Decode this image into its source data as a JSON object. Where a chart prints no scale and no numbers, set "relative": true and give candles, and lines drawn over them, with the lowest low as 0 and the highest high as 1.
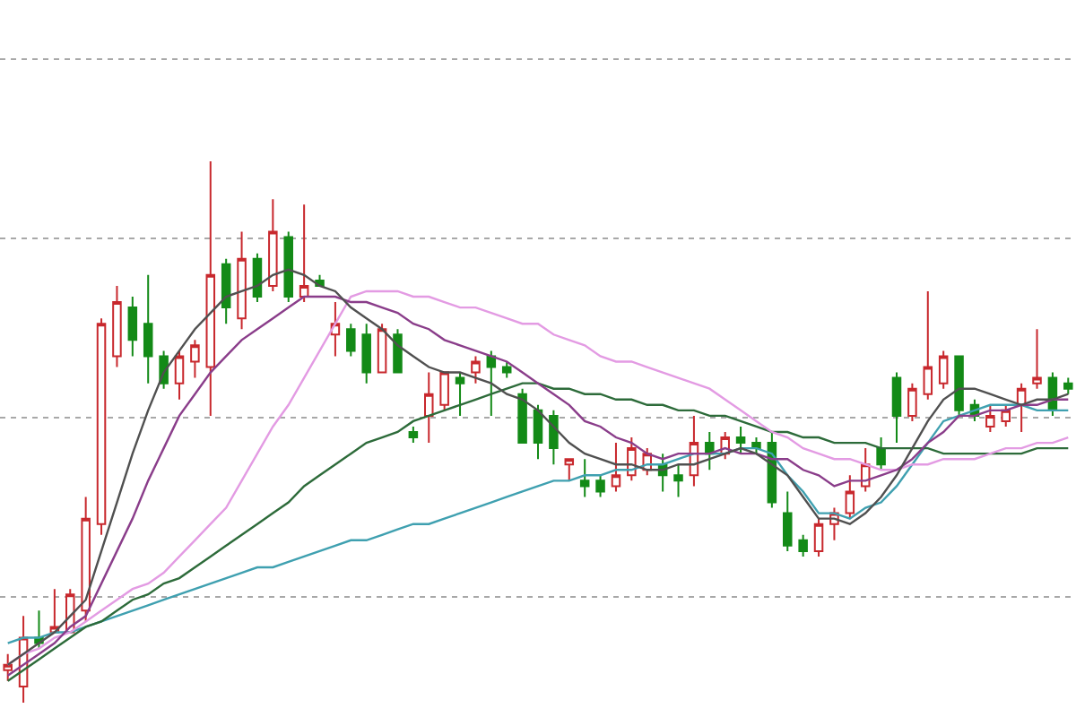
{
  "chart_data": {
    "type": "candlestick",
    "relative": true,
    "grid": "y",
    "categories": [
      null,
      null,
      null,
      null,
      null,
      null,
      null,
      null,
      null,
      null,
      null,
      null,
      null,
      null,
      null,
      null,
      null,
      null,
      null,
      null,
      null,
      null,
      null,
      null,
      null,
      null,
      null,
      null,
      null,
      null,
      null,
      null,
      null,
      null,
      null,
      null,
      null,
      null,
      null,
      null,
      null,
      null,
      null,
      null,
      null,
      null,
      null,
      null,
      null,
      null,
      null,
      null,
      null,
      null,
      null,
      null,
      null,
      null,
      null,
      null,
      null,
      null,
      null,
      null,
      null,
      null,
      null,
      null,
      null
    ],
    "ohlc": [
      [
        0.06,
        0.09,
        0.04,
        0.07
      ],
      [
        0.03,
        0.16,
        0,
        0.12
      ],
      [
        0.12,
        0.17,
        0.1,
        0.11
      ],
      [
        0.13,
        0.21,
        0.13,
        0.14
      ],
      [
        0.13,
        0.21,
        0.13,
        0.2
      ],
      [
        0.17,
        0.38,
        0.15,
        0.34
      ],
      [
        0.33,
        0.71,
        0.31,
        0.7
      ],
      [
        0.64,
        0.77,
        0.62,
        0.74
      ],
      [
        0.73,
        0.75,
        0.64,
        0.67
      ],
      [
        0.7,
        0.79,
        0.59,
        0.64
      ],
      [
        0.64,
        0.65,
        0.58,
        0.59
      ],
      [
        0.59,
        0.65,
        0.56,
        0.64
      ],
      [
        0.63,
        0.67,
        0.6,
        0.66
      ],
      [
        0.62,
        1.0,
        0.53,
        0.79
      ],
      [
        0.81,
        0.82,
        0.7,
        0.73
      ],
      [
        0.71,
        0.87,
        0.69,
        0.82
      ],
      [
        0.82,
        0.83,
        0.74,
        0.75
      ],
      [
        0.77,
        0.93,
        0.76,
        0.87
      ],
      [
        0.86,
        0.87,
        0.74,
        0.75
      ],
      [
        0.75,
        0.92,
        0.74,
        0.77
      ],
      [
        0.78,
        0.79,
        0.77,
        0.77
      ],
      [
        0.68,
        0.74,
        0.64,
        0.7
      ],
      [
        0.69,
        0.7,
        0.64,
        0.65
      ],
      [
        0.68,
        0.7,
        0.59,
        0.61
      ],
      [
        0.61,
        0.7,
        0.61,
        0.69
      ],
      [
        0.68,
        0.69,
        0.61,
        0.61
      ],
      [
        0.5,
        0.51,
        0.48,
        0.49
      ],
      [
        0.53,
        0.61,
        0.48,
        0.57
      ],
      [
        0.55,
        0.61,
        0.54,
        0.61
      ],
      [
        0.6,
        0.61,
        0.53,
        0.59
      ],
      [
        0.61,
        0.64,
        0.59,
        0.63
      ],
      [
        0.64,
        0.65,
        0.53,
        0.62
      ],
      [
        0.62,
        0.63,
        0.6,
        0.61
      ],
      [
        0.57,
        0.58,
        0.48,
        0.48
      ],
      [
        0.54,
        0.55,
        0.45,
        0.48
      ],
      [
        0.53,
        0.54,
        0.44,
        0.47
      ],
      [
        0.44,
        0.45,
        0.41,
        0.45
      ],
      [
        0.41,
        0.45,
        0.38,
        0.4
      ],
      [
        0.41,
        0.42,
        0.38,
        0.39
      ],
      [
        0.4,
        0.48,
        0.39,
        0.42
      ],
      [
        0.42,
        0.49,
        0.41,
        0.47
      ],
      [
        0.43,
        0.47,
        0.42,
        0.46
      ],
      [
        0.44,
        0.46,
        0.39,
        0.42
      ],
      [
        0.42,
        0.44,
        0.38,
        0.41
      ],
      [
        0.42,
        0.53,
        0.4,
        0.48
      ],
      [
        0.48,
        0.5,
        0.43,
        0.46
      ],
      [
        0.46,
        0.5,
        0.45,
        0.49
      ],
      [
        0.49,
        0.51,
        0.46,
        0.48
      ],
      [
        0.48,
        0.49,
        0.46,
        0.47
      ],
      [
        0.48,
        0.5,
        0.36,
        0.37
      ],
      [
        0.35,
        0.39,
        0.28,
        0.29
      ],
      [
        0.3,
        0.31,
        0.27,
        0.28
      ],
      [
        0.28,
        0.34,
        0.27,
        0.33
      ],
      [
        0.33,
        0.36,
        0.3,
        0.35
      ],
      [
        0.35,
        0.42,
        0.34,
        0.39
      ],
      [
        0.4,
        0.47,
        0.39,
        0.44
      ],
      [
        0.47,
        0.49,
        0.43,
        0.44
      ],
      [
        0.6,
        0.61,
        0.48,
        0.53
      ],
      [
        0.53,
        0.59,
        0.52,
        0.58
      ],
      [
        0.57,
        0.76,
        0.56,
        0.62
      ],
      [
        0.59,
        0.65,
        0.58,
        0.64
      ],
      [
        0.64,
        0.64,
        0.53,
        0.54
      ],
      [
        0.55,
        0.56,
        0.52,
        0.53
      ],
      [
        0.51,
        0.55,
        0.5,
        0.53
      ],
      [
        0.52,
        0.55,
        0.51,
        0.54
      ],
      [
        0.55,
        0.59,
        0.5,
        0.58
      ],
      [
        0.59,
        0.69,
        0.58,
        0.6
      ],
      [
        0.6,
        0.61,
        0.53,
        0.54
      ],
      [
        0.59,
        0.6,
        0.57,
        0.58
      ]
    ],
    "colors": [
      "#c8282d",
      "#c8282d",
      "#138a17",
      "#c8282d",
      "#c8282d",
      "#c8282d",
      "#c8282d",
      "#c8282d",
      "#138a17",
      "#138a17",
      "#138a17",
      "#c8282d",
      "#c8282d",
      "#c8282d",
      "#138a17",
      "#c8282d",
      "#138a17",
      "#c8282d",
      "#138a17",
      "#c8282d",
      "#138a17",
      "#c8282d",
      "#138a17",
      "#138a17",
      "#c8282d",
      "#138a17",
      "#138a17",
      "#c8282d",
      "#c8282d",
      "#138a17",
      "#c8282d",
      "#138a17",
      "#138a17",
      "#138a17",
      "#138a17",
      "#138a17",
      "#c8282d",
      "#138a17",
      "#138a17",
      "#c8282d",
      "#c8282d",
      "#c8282d",
      "#138a17",
      "#138a17",
      "#c8282d",
      "#138a17",
      "#c8282d",
      "#138a17",
      "#138a17",
      "#138a17",
      "#138a17",
      "#138a17",
      "#c8282d",
      "#c8282d",
      "#c8282d",
      "#c8282d",
      "#138a17",
      "#138a17",
      "#c8282d",
      "#c8282d",
      "#c8282d",
      "#138a17",
      "#138a17",
      "#c8282d",
      "#c8282d",
      "#c8282d",
      "#c8282d",
      "#138a17",
      "#138a17"
    ],
    "series": [
      {
        "type": "line",
        "color": "#3fa0b0",
        "values": [
          0.11,
          0.12,
          0.12,
          0.13,
          0.13,
          0.14,
          0.15,
          0.16,
          0.17,
          0.18,
          0.19,
          0.2,
          0.21,
          0.22,
          0.23,
          0.24,
          0.25,
          0.25,
          0.26,
          0.27,
          0.28,
          0.29,
          0.3,
          0.3,
          0.31,
          0.32,
          0.33,
          0.33,
          0.34,
          0.35,
          0.36,
          0.37,
          0.38,
          0.39,
          0.4,
          0.41,
          0.41,
          0.42,
          0.42,
          0.43,
          0.43,
          0.44,
          0.44,
          0.45,
          0.46,
          0.46,
          0.46,
          0.47,
          0.47,
          0.46,
          0.42,
          0.39,
          0.35,
          0.35,
          0.34,
          0.36,
          0.37,
          0.4,
          0.44,
          0.48,
          0.52,
          0.53,
          0.54,
          0.55,
          0.55,
          0.55,
          0.54,
          0.54,
          0.54
        ]
      },
      {
        "type": "line",
        "color": "#2d6b3a",
        "values": [
          0.04,
          0.06,
          0.08,
          0.1,
          0.12,
          0.14,
          0.15,
          0.17,
          0.19,
          0.2,
          0.22,
          0.23,
          0.25,
          0.27,
          0.29,
          0.31,
          0.33,
          0.35,
          0.37,
          0.4,
          0.42,
          0.44,
          0.46,
          0.48,
          0.49,
          0.5,
          0.52,
          0.53,
          0.54,
          0.55,
          0.56,
          0.57,
          0.58,
          0.59,
          0.59,
          0.58,
          0.58,
          0.57,
          0.57,
          0.56,
          0.56,
          0.55,
          0.55,
          0.54,
          0.54,
          0.53,
          0.53,
          0.52,
          0.51,
          0.5,
          0.5,
          0.49,
          0.49,
          0.48,
          0.48,
          0.48,
          0.47,
          0.47,
          0.47,
          0.47,
          0.46,
          0.46,
          0.46,
          0.46,
          0.46,
          0.46,
          0.47,
          0.47,
          0.47
        ]
      },
      {
        "type": "line",
        "color": "#e39be3",
        "values": [
          0.07,
          0.09,
          0.1,
          0.12,
          0.13,
          0.15,
          0.17,
          0.19,
          0.21,
          0.22,
          0.24,
          0.27,
          0.3,
          0.33,
          0.36,
          0.41,
          0.46,
          0.51,
          0.55,
          0.6,
          0.65,
          0.7,
          0.75,
          0.76,
          0.76,
          0.76,
          0.75,
          0.75,
          0.74,
          0.73,
          0.73,
          0.72,
          0.71,
          0.7,
          0.7,
          0.68,
          0.67,
          0.66,
          0.64,
          0.63,
          0.63,
          0.62,
          0.61,
          0.6,
          0.59,
          0.58,
          0.56,
          0.54,
          0.52,
          0.5,
          0.49,
          0.47,
          0.46,
          0.45,
          0.45,
          0.44,
          0.43,
          0.43,
          0.44,
          0.44,
          0.45,
          0.45,
          0.45,
          0.46,
          0.47,
          0.47,
          0.48,
          0.48,
          0.49
        ]
      },
      {
        "type": "line",
        "color": "#8a3d8a",
        "values": [
          0.05,
          0.07,
          0.09,
          0.11,
          0.14,
          0.16,
          0.22,
          0.28,
          0.34,
          0.41,
          0.47,
          0.53,
          0.57,
          0.61,
          0.64,
          0.67,
          0.69,
          0.71,
          0.73,
          0.75,
          0.75,
          0.75,
          0.74,
          0.74,
          0.73,
          0.72,
          0.7,
          0.69,
          0.67,
          0.66,
          0.65,
          0.64,
          0.63,
          0.61,
          0.59,
          0.57,
          0.55,
          0.52,
          0.51,
          0.49,
          0.48,
          0.46,
          0.45,
          0.46,
          0.46,
          0.46,
          0.47,
          0.46,
          0.46,
          0.45,
          0.45,
          0.43,
          0.42,
          0.4,
          0.41,
          0.41,
          0.42,
          0.43,
          0.45,
          0.48,
          0.5,
          0.53,
          0.53,
          0.54,
          0.54,
          0.55,
          0.55,
          0.56,
          0.56
        ]
      },
      {
        "type": "line",
        "color": "#505050",
        "values": [
          0.07,
          0.09,
          0.11,
          0.13,
          0.16,
          0.19,
          0.28,
          0.37,
          0.46,
          0.54,
          0.61,
          0.65,
          0.69,
          0.72,
          0.75,
          0.76,
          0.77,
          0.79,
          0.8,
          0.79,
          0.77,
          0.76,
          0.73,
          0.71,
          0.69,
          0.66,
          0.64,
          0.62,
          0.61,
          0.61,
          0.6,
          0.59,
          0.57,
          0.56,
          0.54,
          0.51,
          0.48,
          0.46,
          0.45,
          0.44,
          0.44,
          0.43,
          0.43,
          0.44,
          0.44,
          0.45,
          0.46,
          0.47,
          0.46,
          0.44,
          0.42,
          0.38,
          0.34,
          0.34,
          0.33,
          0.35,
          0.38,
          0.42,
          0.47,
          0.52,
          0.56,
          0.58,
          0.58,
          0.57,
          0.56,
          0.55,
          0.56,
          0.56,
          0.57
        ]
      }
    ]
  }
}
